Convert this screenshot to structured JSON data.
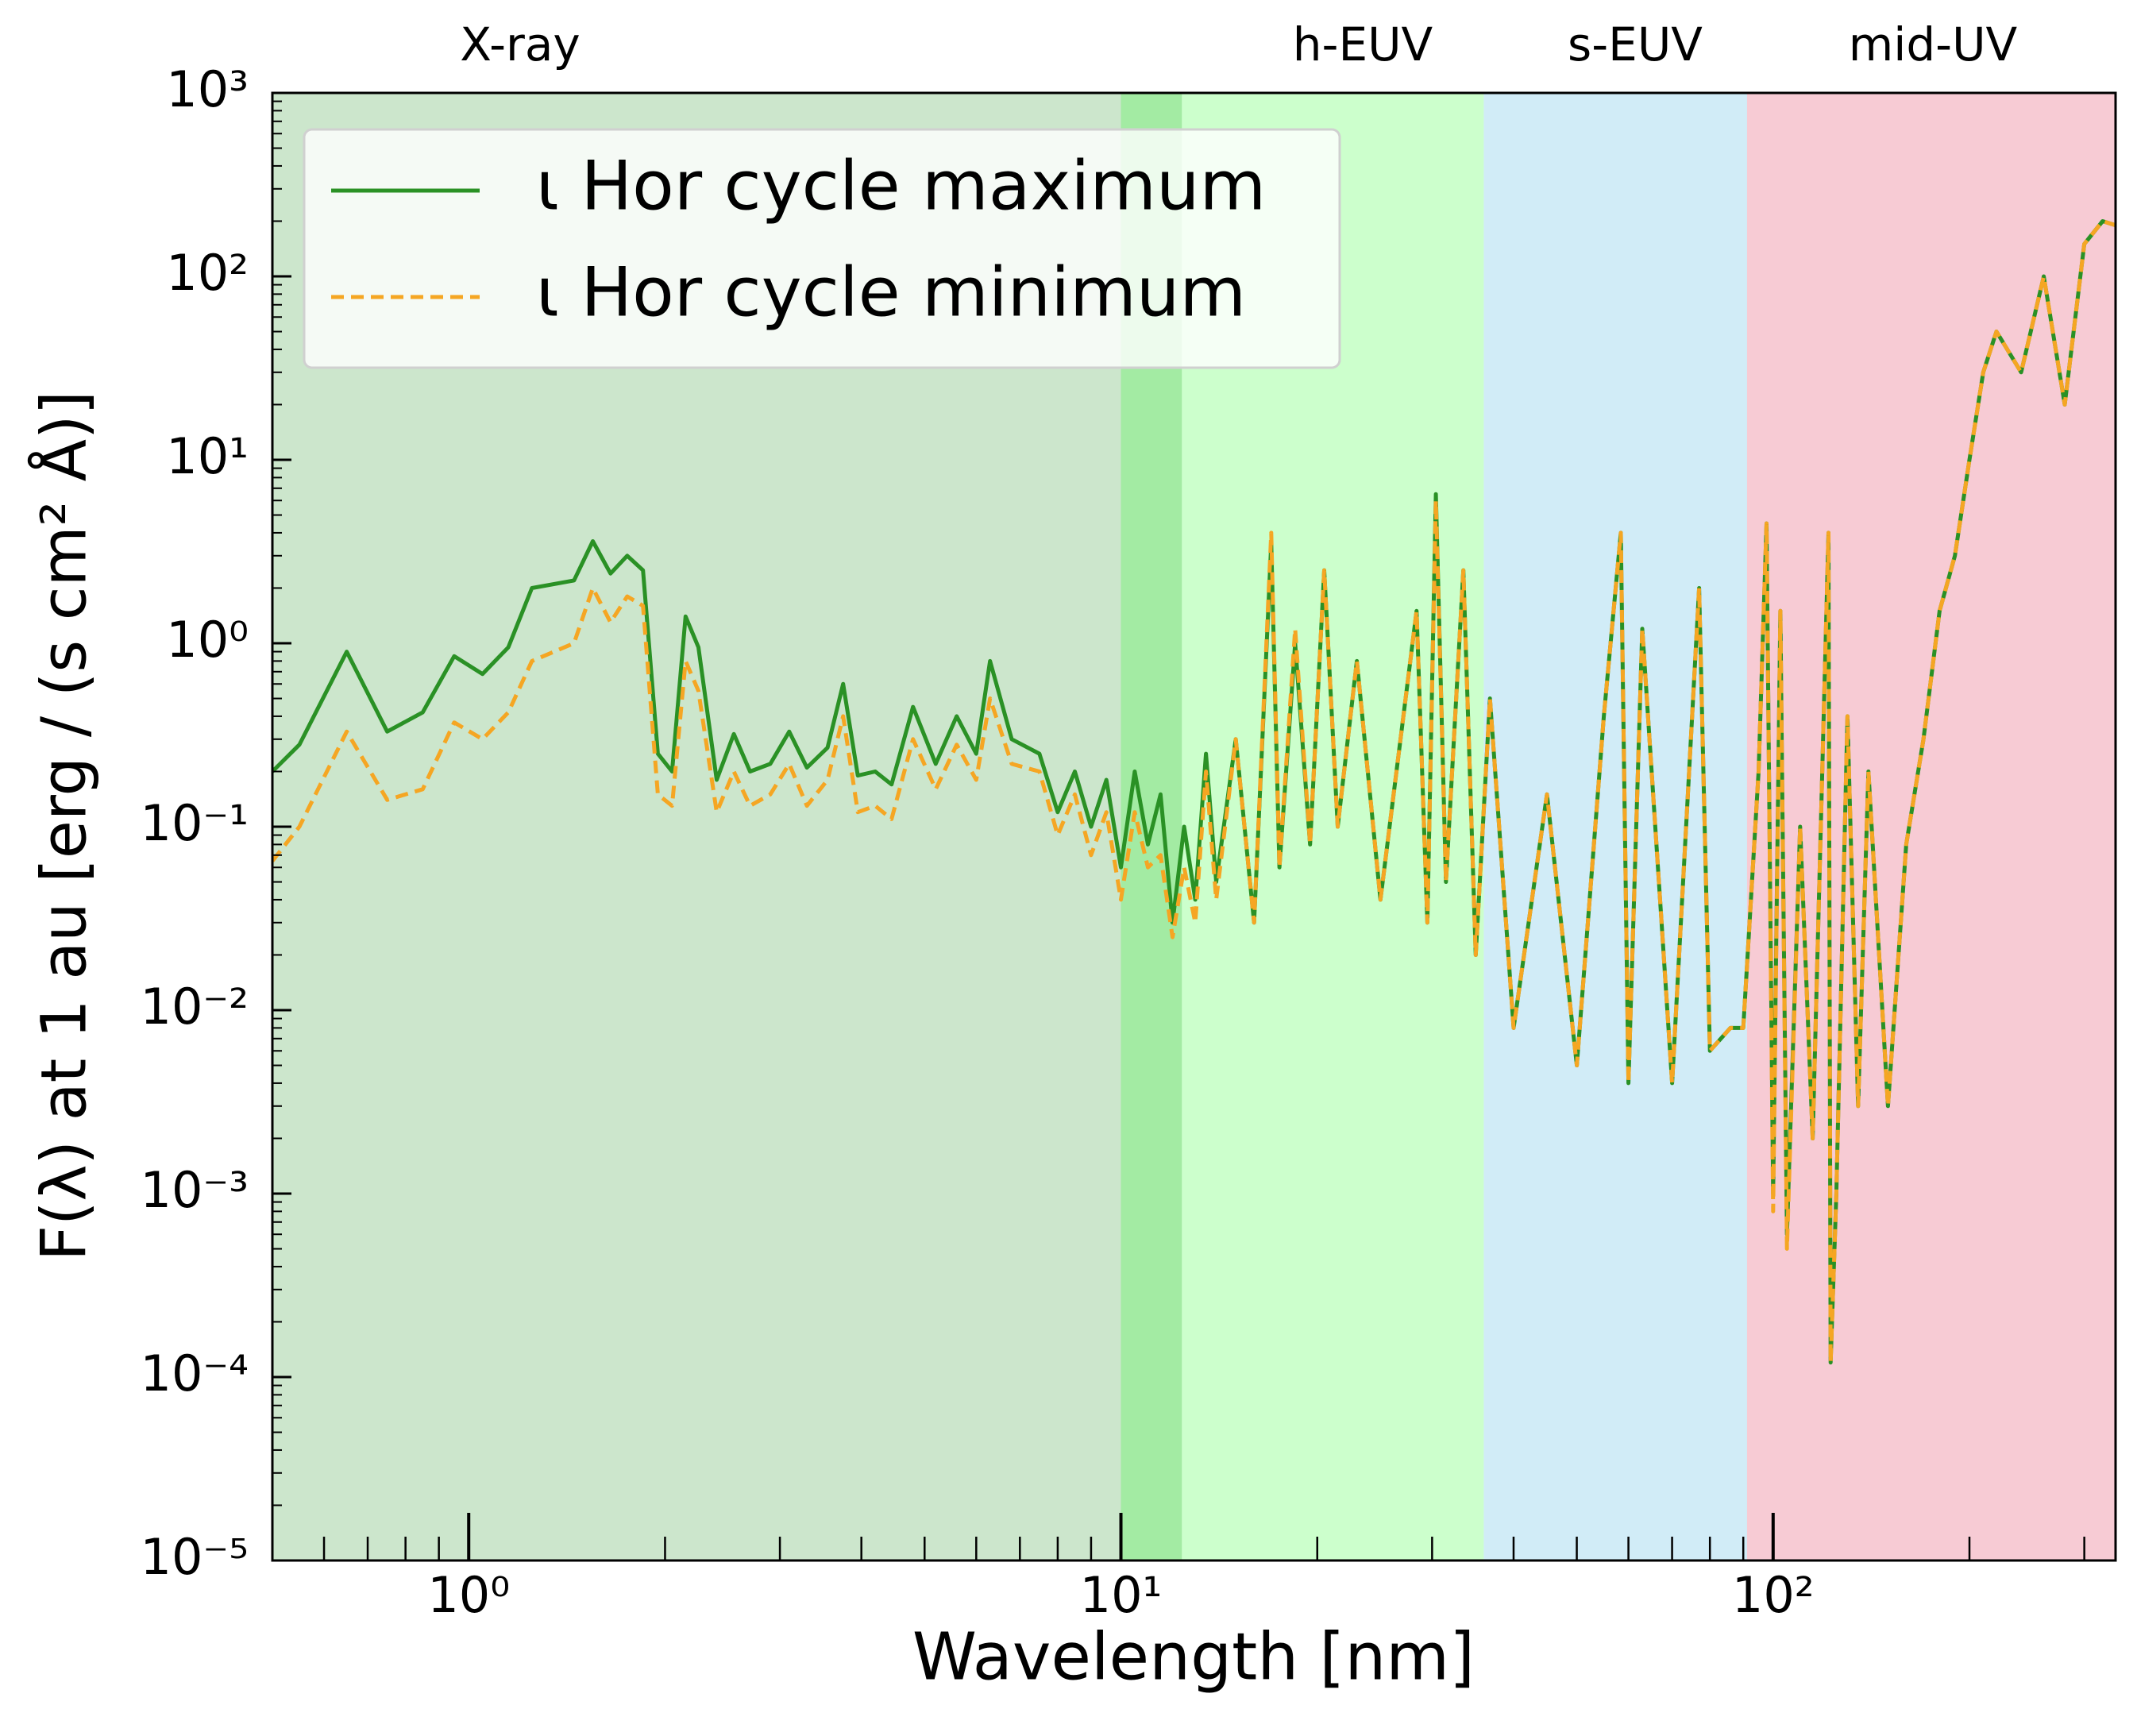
{
  "chart_data": {
    "type": "line",
    "xlabel": "Wavelength [nm]",
    "ylabel": "F(λ) at 1 au [erg / (s cm² Å)]",
    "xscale": "log",
    "yscale": "log",
    "xlim": [
      0.5,
      335
    ],
    "ylim": [
      1e-05,
      1000
    ],
    "xticks": [
      {
        "value": 1,
        "label": "10⁰"
      },
      {
        "value": 10,
        "label": "10¹"
      },
      {
        "value": 100,
        "label": "10²"
      }
    ],
    "yticks": [
      {
        "value": 1e-05,
        "label": "10⁻⁵"
      },
      {
        "value": 0.0001,
        "label": "10⁻⁴"
      },
      {
        "value": 0.001,
        "label": "10⁻³"
      },
      {
        "value": 0.01,
        "label": "10⁻²"
      },
      {
        "value": 0.1,
        "label": "10⁻¹"
      },
      {
        "value": 1,
        "label": "10⁰"
      },
      {
        "value": 10,
        "label": "10¹"
      },
      {
        "value": 100,
        "label": "10²"
      },
      {
        "value": 1000,
        "label": "10³"
      }
    ],
    "legend": "upper left",
    "regions": [
      {
        "label": "X-ray",
        "start": 0.5,
        "end": 12.4,
        "color": "#008000",
        "opacity": 0.2
      },
      {
        "label": "h-EUV",
        "start": 10,
        "end": 36,
        "color": "#00ff00",
        "opacity": 0.2
      },
      {
        "label": "s-EUV",
        "start": 36,
        "end": 91.2,
        "color": "#87ceeb",
        "opacity": 0.38
      },
      {
        "label": "mid-UV",
        "start": 91.2,
        "end": 335,
        "color": "#dc143c",
        "opacity": 0.22
      }
    ],
    "x": [
      0.5,
      0.55,
      0.65,
      0.75,
      0.85,
      0.95,
      1.05,
      1.15,
      1.25,
      1.45,
      1.55,
      1.65,
      1.75,
      1.85,
      1.95,
      2.05,
      2.15,
      2.25,
      2.4,
      2.55,
      2.7,
      2.9,
      3.1,
      3.3,
      3.55,
      3.75,
      3.95,
      4.2,
      4.45,
      4.8,
      5.2,
      5.6,
      6.0,
      6.3,
      6.8,
      7.5,
      8.0,
      8.5,
      9.0,
      9.5,
      10,
      10.5,
      11,
      11.5,
      12,
      12.5,
      13,
      13.5,
      14,
      15,
      16,
      17,
      17.5,
      18.5,
      19.5,
      20.5,
      21.5,
      23,
      25,
      28.4,
      29.5,
      30.4,
      31.5,
      33.5,
      35,
      36.8,
      40,
      45,
      50,
      55,
      58.4,
      60,
      63,
      70,
      77,
      80,
      86,
      90,
      95,
      97.7,
      100,
      102.6,
      105,
      110,
      115,
      121.6,
      122.5,
      125,
      130,
      135,
      140,
      150,
      160,
      170,
      180,
      190,
      200,
      210,
      220,
      240,
      260,
      280,
      300,
      320,
      335
    ],
    "series": [
      {
        "name": "ι Hor cycle maximum",
        "color": "#2a9125",
        "linestyle": "solid",
        "values": [
          0.2,
          0.28,
          0.9,
          0.33,
          0.42,
          0.85,
          0.68,
          0.95,
          2.0,
          2.2,
          3.6,
          2.4,
          3.0,
          2.5,
          0.25,
          0.2,
          1.4,
          0.95,
          0.18,
          0.32,
          0.2,
          0.22,
          0.33,
          0.21,
          0.27,
          0.6,
          0.19,
          0.2,
          0.17,
          0.45,
          0.22,
          0.4,
          0.25,
          0.8,
          0.3,
          0.25,
          0.12,
          0.2,
          0.1,
          0.18,
          0.06,
          0.2,
          0.08,
          0.15,
          0.03,
          0.1,
          0.04,
          0.25,
          0.05,
          0.3,
          0.03,
          3.5,
          0.06,
          1.0,
          0.08,
          2.5,
          0.1,
          0.8,
          0.04,
          1.5,
          0.03,
          6.5,
          0.05,
          2.5,
          0.02,
          0.5,
          0.008,
          0.15,
          0.005,
          0.4,
          4.0,
          0.004,
          1.2,
          0.004,
          2.0,
          0.006,
          0.008,
          0.008,
          0.2,
          4.5,
          0.001,
          1.5,
          0.0006,
          0.1,
          0.002,
          4.0,
          0.00012,
          0.001,
          0.4,
          0.003,
          0.2,
          0.003,
          0.08,
          0.3,
          1.5,
          3.0,
          10,
          30,
          50,
          30,
          100,
          20,
          150,
          200,
          190
        ]
      },
      {
        "name": "ι Hor cycle minimum",
        "color": "#f5a623",
        "linestyle": "dashed",
        "values": [
          0.065,
          0.1,
          0.33,
          0.14,
          0.16,
          0.37,
          0.3,
          0.42,
          0.8,
          1.0,
          2.0,
          1.3,
          1.8,
          1.6,
          0.15,
          0.13,
          0.8,
          0.55,
          0.12,
          0.2,
          0.13,
          0.15,
          0.22,
          0.13,
          0.18,
          0.4,
          0.12,
          0.13,
          0.11,
          0.3,
          0.16,
          0.28,
          0.18,
          0.5,
          0.22,
          0.2,
          0.09,
          0.15,
          0.07,
          0.12,
          0.04,
          0.12,
          0.06,
          0.07,
          0.025,
          0.06,
          0.03,
          0.2,
          0.04,
          0.3,
          0.03,
          4.0,
          0.06,
          1.2,
          0.08,
          2.5,
          0.1,
          0.8,
          0.04,
          1.5,
          0.03,
          6.0,
          0.05,
          2.5,
          0.02,
          0.5,
          0.008,
          0.15,
          0.005,
          0.4,
          4.0,
          0.004,
          1.2,
          0.004,
          2.0,
          0.006,
          0.008,
          0.008,
          0.2,
          4.5,
          0.0008,
          1.5,
          0.0005,
          0.1,
          0.002,
          4.0,
          0.00012,
          0.001,
          0.4,
          0.003,
          0.2,
          0.003,
          0.08,
          0.3,
          1.5,
          3.0,
          10,
          30,
          50,
          30,
          100,
          20,
          150,
          200,
          190
        ]
      }
    ]
  }
}
